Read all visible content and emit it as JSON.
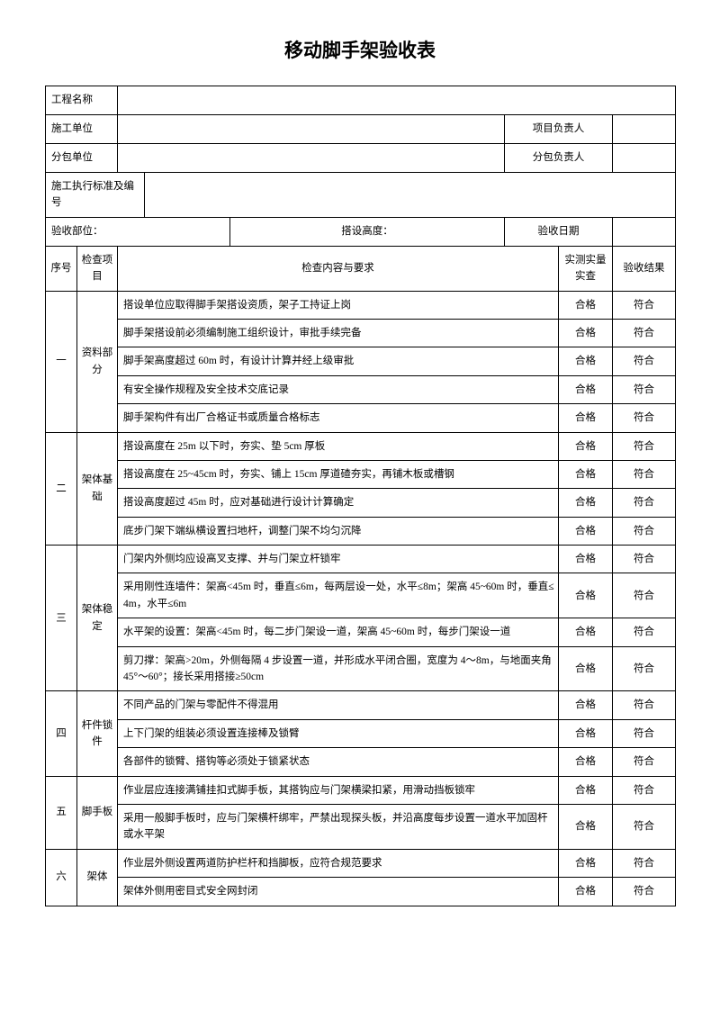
{
  "title": "移动脚手架验收表",
  "header": {
    "proj_name_label": "工程名称",
    "constr_unit_label": "施工单位",
    "proj_leader_label": "项目负责人",
    "sub_unit_label": "分包单位",
    "sub_leader_label": "分包负责人",
    "std_label": "施工执行标准及编号",
    "accept_unit_label": "验收部位：",
    "build_height_label": "搭设高度：",
    "accept_date_label": "验收日期"
  },
  "thead": {
    "seq": "序号",
    "item": "检查项目",
    "content": "检查内容与要求",
    "measured": "实测实量实查",
    "result": "验收结果"
  },
  "groups": [
    {
      "seq": "一",
      "item": "资料部分",
      "rows": [
        {
          "content": "搭设单位应取得脚手架搭设资质，架子工持证上岗",
          "measured": "合格",
          "result": "符合"
        },
        {
          "content": "脚手架搭设前必须编制施工组织设计，审批手续完备",
          "measured": "合格",
          "result": "符合"
        },
        {
          "content": "脚手架高度超过 60m 时，有设计计算并经上级审批",
          "measured": "合格",
          "result": "符合"
        },
        {
          "content": "有安全操作规程及安全技术交底记录",
          "measured": "合格",
          "result": "符合"
        },
        {
          "content": "脚手架构件有出厂合格证书或质量合格标志",
          "measured": "合格",
          "result": "符合"
        }
      ]
    },
    {
      "seq": "二",
      "item": "架体基础",
      "rows": [
        {
          "content": "搭设高度在 25m 以下时，夯实、垫 5cm 厚板",
          "measured": "合格",
          "result": "符合"
        },
        {
          "content": "搭设高度在 25~45cm 时，夯实、铺上 15cm 厚道碴夯实，再铺木板或槽钢",
          "measured": "合格",
          "result": "符合"
        },
        {
          "content": "搭设高度超过 45m 时，应对基础进行设计计算确定",
          "measured": "合格",
          "result": "符合"
        },
        {
          "content": "底步门架下端纵横设置扫地杆，调整门架不均匀沉降",
          "measured": "合格",
          "result": "符合"
        }
      ]
    },
    {
      "seq": "三",
      "item": "架体稳定",
      "rows": [
        {
          "content": "门架内外侧均应设高叉支撑、并与门架立杆锁牢",
          "measured": "合格",
          "result": "符合"
        },
        {
          "content": "采用刚性连墙件：架高<45m 时，垂直≤6m，每两层设一处，水平≤8m；架高 45~60m 时，垂直≤4m，水平≤6m",
          "measured": "合格",
          "result": "符合"
        },
        {
          "content": "水平架的设置：架高<45m 时，每二步门架设一道，架高 45~60m 时，每步门架设一道",
          "measured": "合格",
          "result": "符合"
        },
        {
          "content": "剪刀撑：架高>20m，外侧每隔 4 步设置一道，并形成水平闭合圈，宽度为 4～8m，与地面夹角 45°～60°；接长采用搭接≥50cm",
          "measured": "合格",
          "result": "符合"
        }
      ]
    },
    {
      "seq": "四",
      "item": "杆件锁件",
      "rows": [
        {
          "content": "不同产品的门架与零配件不得混用",
          "measured": "合格",
          "result": "符合"
        },
        {
          "content": "上下门架的组装必须设置连接棒及锁臂",
          "measured": "合格",
          "result": "符合"
        },
        {
          "content": "各部件的锁臂、搭钩等必须处于锁紧状态",
          "measured": "合格",
          "result": "符合"
        }
      ]
    },
    {
      "seq": "五",
      "item": "脚手板",
      "rows": [
        {
          "content": "作业层应连接满铺挂扣式脚手板，其搭钩应与门架横梁扣紧，用滑动挡板锁牢",
          "measured": "合格",
          "result": "符合"
        },
        {
          "content": "采用一般脚手板时，应与门架横杆绑牢，严禁出现探头板，并沿高度每步设置一道水平加固杆或水平架",
          "measured": "合格",
          "result": "符合"
        }
      ]
    },
    {
      "seq": "六",
      "item": "架体",
      "rows": [
        {
          "content": "作业层外侧设置两道防护栏杆和挡脚板，应符合规范要求",
          "measured": "合格",
          "result": "符合"
        },
        {
          "content": "架体外侧用密目式安全网封闭",
          "measured": "合格",
          "result": "符合"
        }
      ]
    }
  ]
}
